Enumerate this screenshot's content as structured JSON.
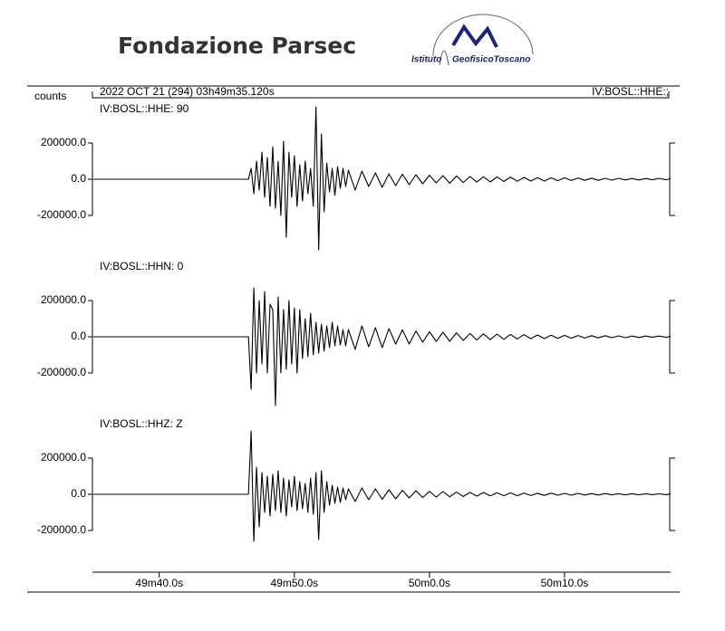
{
  "header": {
    "title": "Fondazione Parsec",
    "logo_left": "Istituto",
    "logo_right": "GeofisicoToscano"
  },
  "record": {
    "units": "counts",
    "start": "2022 OCT 21 (294)  03h49m35.120s",
    "station": "IV:BOSL::HHE:;"
  },
  "chart_data": [
    {
      "type": "line",
      "title": "IV:BOSL::HHE: 90",
      "color": "#000000",
      "xlim": [
        35.12,
        77.85
      ],
      "ylim": [
        -400000,
        400000
      ],
      "yticks": [
        {
          "value": 200000,
          "label": "200000.0"
        },
        {
          "value": 0,
          "label": "0.0"
        },
        {
          "value": -200000,
          "label": "-200000.0"
        }
      ],
      "x": [
        35.12,
        46.6,
        46.8,
        47.0,
        47.2,
        47.4,
        47.6,
        47.8,
        48.0,
        48.2,
        48.4,
        48.6,
        48.8,
        49.0,
        49.2,
        49.4,
        49.6,
        49.8,
        50.0,
        50.2,
        50.4,
        50.6,
        50.8,
        51.0,
        51.2,
        51.4,
        51.6,
        51.8,
        52.0,
        52.2,
        52.4,
        52.6,
        52.8,
        53.0,
        53.2,
        53.4,
        53.6,
        53.8,
        54.0,
        54.5,
        55.0,
        55.5,
        56.0,
        56.5,
        57.0,
        57.5,
        58.0,
        58.5,
        59.0,
        59.5,
        60.0,
        60.5,
        61.0,
        61.5,
        62.0,
        62.5,
        63.0,
        63.5,
        64.0,
        64.5,
        65.0,
        65.5,
        66.0,
        66.5,
        67.0,
        67.5,
        68.0,
        68.5,
        69.0,
        69.5,
        70.0,
        70.5,
        71.0,
        71.5,
        72.0,
        72.5,
        73.0,
        73.5,
        74.0,
        74.5,
        75.0,
        75.5,
        76.0,
        76.5,
        77.0,
        77.5,
        77.85
      ],
      "values": [
        0,
        0,
        60000,
        -80000,
        100000,
        -60000,
        150000,
        -100000,
        120000,
        -150000,
        180000,
        -160000,
        100000,
        -200000,
        210000,
        -320000,
        150000,
        -100000,
        130000,
        -150000,
        80000,
        -120000,
        100000,
        -80000,
        60000,
        -150000,
        400000,
        -390000,
        250000,
        -180000,
        90000,
        -70000,
        60000,
        -90000,
        70000,
        -50000,
        60000,
        -40000,
        50000,
        -60000,
        45000,
        -40000,
        35000,
        -45000,
        30000,
        -35000,
        28000,
        -30000,
        25000,
        -25000,
        22000,
        -20000,
        20000,
        -22000,
        18000,
        -18000,
        15000,
        -16000,
        14000,
        -15000,
        13000,
        -12000,
        12000,
        -11000,
        10000,
        -10000,
        9000,
        -10000,
        8000,
        -8000,
        8000,
        -7000,
        7000,
        -6000,
        6000,
        -6000,
        5000,
        -5000,
        5000,
        -4000,
        4000,
        -4000,
        4000,
        -3000,
        5000,
        -3000,
        3000
      ]
    },
    {
      "type": "line",
      "title": "IV:BOSL::HHN: 0",
      "color": "#000000",
      "xlim": [
        35.12,
        77.85
      ],
      "ylim": [
        -400000,
        400000
      ],
      "yticks": [
        {
          "value": 200000,
          "label": "200000.0"
        },
        {
          "value": 0,
          "label": "0.0"
        },
        {
          "value": -200000,
          "label": "-200000.0"
        }
      ],
      "x": [
        35.12,
        46.6,
        46.8,
        47.0,
        47.2,
        47.4,
        47.6,
        47.8,
        48.0,
        48.2,
        48.4,
        48.6,
        48.8,
        49.0,
        49.2,
        49.4,
        49.6,
        49.8,
        50.0,
        50.2,
        50.4,
        50.6,
        50.8,
        51.0,
        51.2,
        51.4,
        51.6,
        51.8,
        52.0,
        52.2,
        52.4,
        52.6,
        52.8,
        53.0,
        53.2,
        53.4,
        53.6,
        53.8,
        54.0,
        54.5,
        55.0,
        55.5,
        56.0,
        56.5,
        57.0,
        57.5,
        58.0,
        58.5,
        59.0,
        59.5,
        60.0,
        60.5,
        61.0,
        61.5,
        62.0,
        62.5,
        63.0,
        63.5,
        64.0,
        64.5,
        65.0,
        65.5,
        66.0,
        66.5,
        67.0,
        67.5,
        68.0,
        68.5,
        69.0,
        69.5,
        70.0,
        70.5,
        71.0,
        71.5,
        72.0,
        72.5,
        73.0,
        73.5,
        74.0,
        74.5,
        75.0,
        75.5,
        76.0,
        76.5,
        77.0,
        77.5,
        77.85
      ],
      "values": [
        0,
        0,
        -290000,
        270000,
        -200000,
        200000,
        -150000,
        250000,
        -200000,
        180000,
        150000,
        -380000,
        220000,
        -200000,
        150000,
        -180000,
        200000,
        -150000,
        160000,
        -200000,
        150000,
        -120000,
        100000,
        -110000,
        130000,
        -100000,
        80000,
        -90000,
        70000,
        -80000,
        60000,
        -60000,
        80000,
        -50000,
        60000,
        -45000,
        40000,
        -50000,
        40000,
        -70000,
        60000,
        -55000,
        50000,
        -60000,
        45000,
        -40000,
        38000,
        -40000,
        32000,
        -30000,
        28000,
        -26000,
        25000,
        -25000,
        22000,
        -20000,
        18000,
        -18000,
        16000,
        -16000,
        15000,
        -14000,
        13000,
        -12000,
        12000,
        -11000,
        10000,
        -10000,
        9000,
        -9000,
        8000,
        -8000,
        7000,
        -7000,
        6000,
        -6000,
        6000,
        -5000,
        5000,
        -5000,
        4000,
        -4000,
        4000,
        -3000,
        4000,
        -3000,
        2000
      ]
    },
    {
      "type": "line",
      "title": "IV:BOSL::HHZ: Z",
      "color": "#000000",
      "xlim": [
        35.12,
        77.85
      ],
      "ylim": [
        -400000,
        400000
      ],
      "yticks": [
        {
          "value": 200000,
          "label": "200000.0"
        },
        {
          "value": 0,
          "label": "0.0"
        },
        {
          "value": -200000,
          "label": "-200000.0"
        }
      ],
      "xticks": [
        {
          "value": 40,
          "label": "49m40.0s"
        },
        {
          "value": 50,
          "label": "49m50.0s"
        },
        {
          "value": 60,
          "label": "50m0.0s"
        },
        {
          "value": 70,
          "label": "50m10.0s"
        }
      ],
      "x": [
        35.12,
        46.6,
        46.8,
        47.0,
        47.2,
        47.4,
        47.6,
        47.8,
        48.0,
        48.2,
        48.4,
        48.6,
        48.8,
        49.0,
        49.2,
        49.4,
        49.6,
        49.8,
        50.0,
        50.2,
        50.4,
        50.6,
        50.8,
        51.0,
        51.2,
        51.4,
        51.6,
        51.8,
        52.0,
        52.2,
        52.4,
        52.6,
        52.8,
        53.0,
        53.2,
        53.4,
        53.6,
        53.8,
        54.0,
        54.5,
        55.0,
        55.5,
        56.0,
        56.5,
        57.0,
        57.5,
        58.0,
        58.5,
        59.0,
        59.5,
        60.0,
        60.5,
        61.0,
        61.5,
        62.0,
        62.5,
        63.0,
        63.5,
        64.0,
        64.5,
        65.0,
        65.5,
        66.0,
        66.5,
        67.0,
        67.5,
        68.0,
        68.5,
        69.0,
        69.5,
        70.0,
        70.5,
        71.0,
        71.5,
        72.0,
        72.5,
        73.0,
        73.5,
        74.0,
        74.5,
        75.0,
        75.5,
        76.0,
        76.5,
        77.0,
        77.5,
        77.85
      ],
      "values": [
        0,
        0,
        350000,
        -260000,
        150000,
        -180000,
        120000,
        -100000,
        100000,
        -120000,
        110000,
        -90000,
        130000,
        -100000,
        90000,
        -120000,
        80000,
        -70000,
        100000,
        -90000,
        70000,
        -80000,
        60000,
        -100000,
        90000,
        -110000,
        120000,
        -250000,
        130000,
        -100000,
        70000,
        -60000,
        50000,
        -50000,
        40000,
        -45000,
        35000,
        -30000,
        30000,
        -40000,
        35000,
        -30000,
        30000,
        -28000,
        25000,
        -25000,
        22000,
        -20000,
        20000,
        -18000,
        16000,
        -15000,
        15000,
        -14000,
        12000,
        -12000,
        11000,
        -10000,
        10000,
        -9000,
        9000,
        -8000,
        8000,
        -8000,
        7000,
        -7000,
        6000,
        -6000,
        6000,
        -5000,
        5000,
        -5000,
        5000,
        -4000,
        4000,
        -4000,
        4000,
        -3000,
        3000,
        -3000,
        3000,
        -3000,
        3000,
        -2000,
        3000,
        -2000,
        2000
      ]
    }
  ]
}
